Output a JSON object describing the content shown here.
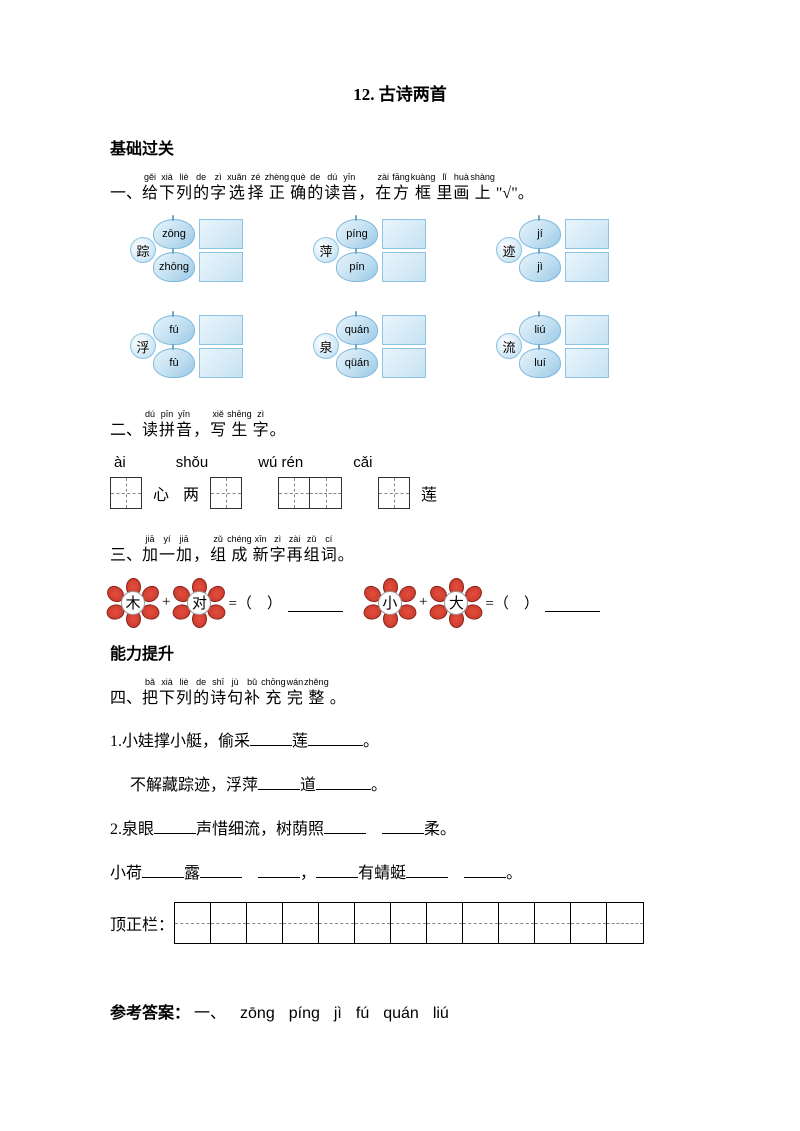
{
  "title": "12. 古诗两首",
  "basics_label": "基础过关",
  "q1": {
    "prefix": "一、",
    "chars": [
      {
        "p": "gěi",
        "c": "给"
      },
      {
        "p": "xià",
        "c": "下"
      },
      {
        "p": "liè",
        "c": "列"
      },
      {
        "p": "de",
        "c": "的"
      },
      {
        "p": "zì",
        "c": "字"
      },
      {
        "p": "xuǎn",
        "c": "选"
      },
      {
        "p": "zé",
        "c": "择"
      },
      {
        "p": "zhèng",
        "c": "正"
      },
      {
        "p": "què",
        "c": "确"
      },
      {
        "p": "de",
        "c": "的"
      },
      {
        "p": "dú",
        "c": "读"
      },
      {
        "p": "yīn",
        "c": "音"
      },
      {
        "p": "",
        "c": "，"
      },
      {
        "p": "zài",
        "c": "在"
      },
      {
        "p": "fāng",
        "c": "方"
      },
      {
        "p": "kuàng",
        "c": "框"
      },
      {
        "p": "lǐ",
        "c": "里"
      },
      {
        "p": "huà",
        "c": "画"
      },
      {
        "p": "shàng",
        "c": "上"
      }
    ],
    "suffix": " \"√\"。",
    "groups": [
      {
        "char": "踪",
        "opts": [
          "zōng",
          "zhōng"
        ]
      },
      {
        "char": "萍",
        "opts": [
          "píng",
          "pín"
        ]
      },
      {
        "char": "迹",
        "opts": [
          "jí",
          "jì"
        ]
      },
      {
        "char": "浮",
        "opts": [
          "fú",
          "fù"
        ]
      },
      {
        "char": "泉",
        "opts": [
          "quán",
          "qüán"
        ]
      },
      {
        "char": "流",
        "opts": [
          "liú",
          "luí"
        ]
      }
    ]
  },
  "q2": {
    "prefix": "二、",
    "chars": [
      {
        "p": "dú",
        "c": "读"
      },
      {
        "p": "pīn",
        "c": "拼"
      },
      {
        "p": "yīn",
        "c": "音"
      },
      {
        "p": "",
        "c": "，"
      },
      {
        "p": "xiě",
        "c": "写"
      },
      {
        "p": "shēng",
        "c": "生"
      },
      {
        "p": "zì",
        "c": "字"
      },
      {
        "p": "",
        "c": "。"
      }
    ],
    "pinyins": [
      "ài",
      "shǒu",
      "wú  rén",
      "cǎi"
    ],
    "words": {
      "a": "心",
      "b": "两",
      "c": "莲"
    }
  },
  "q3": {
    "prefix": "三、",
    "chars": [
      {
        "p": "jiā",
        "c": "加"
      },
      {
        "p": "yí",
        "c": "一"
      },
      {
        "p": "jiā",
        "c": "加"
      },
      {
        "p": "",
        "c": "，"
      },
      {
        "p": "zǔ",
        "c": "组"
      },
      {
        "p": "chéng",
        "c": "成"
      },
      {
        "p": "xīn",
        "c": "新"
      },
      {
        "p": "zì",
        "c": "字"
      },
      {
        "p": "zài",
        "c": "再"
      },
      {
        "p": "zǔ",
        "c": "组"
      },
      {
        "p": "cí",
        "c": "词"
      },
      {
        "p": "",
        "c": "。"
      }
    ],
    "flowers": [
      "木",
      "对",
      "小",
      "大"
    ]
  },
  "ability_label": "能力提升",
  "q4": {
    "prefix": "四、",
    "chars": [
      {
        "p": "bǎ",
        "c": "把"
      },
      {
        "p": "xià",
        "c": "下"
      },
      {
        "p": "liè",
        "c": "列"
      },
      {
        "p": "de",
        "c": "的"
      },
      {
        "p": "shī",
        "c": "诗"
      },
      {
        "p": "jù",
        "c": "句"
      },
      {
        "p": "bǔ",
        "c": "补"
      },
      {
        "p": "chōng",
        "c": "充"
      },
      {
        "p": "wán",
        "c": "完"
      },
      {
        "p": "zhěng",
        "c": "整"
      },
      {
        "p": "",
        "c": "。"
      }
    ],
    "lines": {
      "l1a": "1.小娃撑小艇，偷采",
      "l1b": "莲",
      "l1c": "。",
      "l2a": "不解藏踪迹，浮萍",
      "l2b": "道",
      "l2c": "。",
      "l3a": "2.泉眼",
      "l3b": "声惜细流，树荫照",
      "l3c": "柔。",
      "l4a": "小荷",
      "l4b": "露",
      "l4c": "，",
      "l4d": "有蜻蜓",
      "l4e": "。"
    }
  },
  "correction_label": "顶正栏：",
  "answer": {
    "label": "参考答案：",
    "q1_label": "一、",
    "items": [
      "zōng",
      "píng",
      "jì",
      "fú",
      "quán",
      "liú"
    ]
  }
}
